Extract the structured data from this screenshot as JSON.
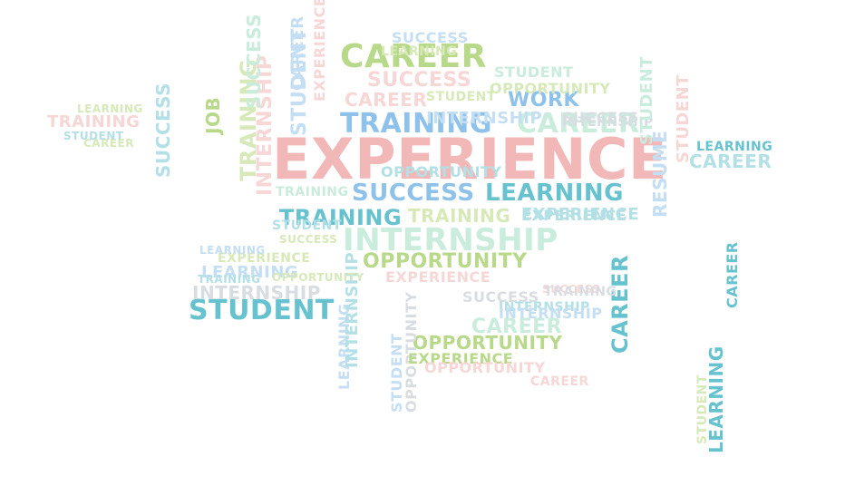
{
  "image": {
    "description_shape": "graduation-cap",
    "background": "#ffffff",
    "palette": {
      "pink": "#f2b8b8",
      "pink_light": "#f7d6d6",
      "green": "#b9d98a",
      "green_light": "#d7e9b8",
      "blue": "#8fc2ea",
      "blue_light": "#c4def3",
      "teal": "#66c2cf",
      "teal_light": "#b3e0e6",
      "mint": "#c9ecdd",
      "gray": "#d8dde2"
    },
    "words": [
      {
        "text": "EXPERIENCE",
        "color": "pink"
      },
      {
        "text": "CAREER",
        "color": "green"
      },
      {
        "text": "TRAINING",
        "color": "blue"
      },
      {
        "text": "SUCCESS",
        "color": "blue"
      },
      {
        "text": "LEARNING",
        "color": "teal"
      },
      {
        "text": "TRAINING",
        "color": "teal"
      },
      {
        "text": "TRAINING",
        "color": "green_light"
      },
      {
        "text": "INTERNSHIP",
        "color": "mint"
      },
      {
        "text": "STUDENT",
        "color": "teal"
      },
      {
        "text": "OPPORTUNITY",
        "color": "green"
      },
      {
        "text": "WORK",
        "color": "blue"
      },
      {
        "text": "CAREER",
        "color": "mint"
      },
      {
        "text": "INTERNSHIP",
        "color": "blue_light"
      },
      {
        "text": "RESUME",
        "color": "blue_light"
      },
      {
        "text": "SUCCESS",
        "color": "teal_light"
      },
      {
        "text": "JOB",
        "color": "green"
      },
      {
        "text": "CAREER",
        "color": "teal"
      },
      {
        "text": "LEARNING",
        "color": "blue_light"
      },
      {
        "text": "INTERNSHIP",
        "color": "teal_light"
      },
      {
        "text": "OPPORTUNITY",
        "color": "green_light"
      },
      {
        "text": "SUCCESS",
        "color": "pink_light"
      },
      {
        "text": "EXPERIENCE",
        "color": "teal_light"
      },
      {
        "text": "CAREER",
        "color": "pink_light"
      },
      {
        "text": "TRAINING",
        "color": "pink_light"
      },
      {
        "text": "STUDENT",
        "color": "blue_light"
      },
      {
        "text": "LEARNING",
        "color": "green_light"
      },
      {
        "text": "OPPORTUNITY",
        "color": "green"
      },
      {
        "text": "EXPERIENCE",
        "color": "green_light"
      },
      {
        "text": "STUDENT",
        "color": "mint"
      },
      {
        "text": "CAREER",
        "color": "teal_light"
      },
      {
        "text": "SUCCESS",
        "color": "gray"
      },
      {
        "text": "INTERNSHIP",
        "color": "gray"
      },
      {
        "text": "LEARNING",
        "color": "teal"
      },
      {
        "text": "STUDENT",
        "color": "green_light"
      },
      {
        "text": "EXPERIENCE",
        "color": "pink_light"
      },
      {
        "text": "CAREER",
        "color": "mint"
      },
      {
        "text": "SUCCESS",
        "color": "pink_light"
      },
      {
        "text": "TRAINING",
        "color": "mint"
      },
      {
        "text": "INTERNSHIP",
        "color": "pink_light"
      },
      {
        "text": "STUDENT",
        "color": "teal_light"
      },
      {
        "text": "OPPORTUNITY",
        "color": "gray"
      },
      {
        "text": "SUCCESS",
        "color": "green_light"
      },
      {
        "text": "LEARNING",
        "color": "blue_light"
      },
      {
        "text": "CAREER",
        "color": "teal"
      },
      {
        "text": "STUDENT",
        "color": "blue_light"
      },
      {
        "text": "EXPERIENCE",
        "color": "green"
      },
      {
        "text": "INTERNSHIP",
        "color": "blue_light"
      },
      {
        "text": "TRAINING",
        "color": "green_light"
      },
      {
        "text": "SUCCESS",
        "color": "mint"
      },
      {
        "text": "OPPORTUNITY",
        "color": "pink_light"
      },
      {
        "text": "CAREER",
        "color": "green_light"
      },
      {
        "text": "STUDENT",
        "color": "green_light"
      },
      {
        "text": "LEARNING",
        "color": "teal"
      },
      {
        "text": "INTERNSHIP",
        "color": "teal_light"
      },
      {
        "text": "EXPERIENCE",
        "color": "teal_light"
      },
      {
        "text": "STUDENT",
        "color": "pink_light"
      },
      {
        "text": "CAREER",
        "color": "blue_light"
      },
      {
        "text": "SUCCESS",
        "color": "gray"
      },
      {
        "text": "TRAINING",
        "color": "gray"
      },
      {
        "text": "OPPORTUNITY",
        "color": "teal_light"
      },
      {
        "text": "LEARNING",
        "color": "green_light"
      },
      {
        "text": "STUDENT",
        "color": "teal_light"
      },
      {
        "text": "EXPERIENCE",
        "color": "pink_light"
      },
      {
        "text": "CAREER",
        "color": "pink_light"
      },
      {
        "text": "SUCCESS",
        "color": "blue_light"
      },
      {
        "text": "INTERNSHIP",
        "color": "gray"
      },
      {
        "text": "STUDENT",
        "color": "mint"
      },
      {
        "text": "LEARNING",
        "color": "blue_light"
      },
      {
        "text": "TRAINING",
        "color": "teal_light"
      },
      {
        "text": "OPPORTUNITY",
        "color": "green_light"
      }
    ]
  }
}
